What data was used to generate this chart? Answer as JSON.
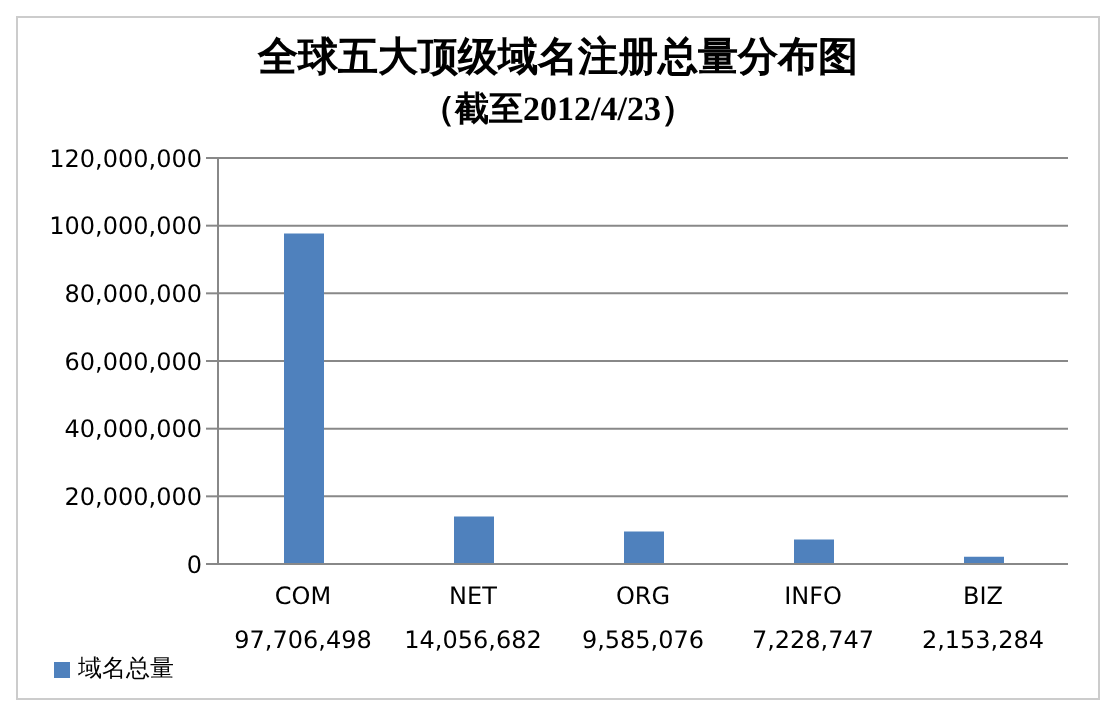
{
  "chart_data": {
    "type": "bar",
    "title": "全球五大顶级域名注册总量分布图",
    "subtitle": "（截至2012/4/23）",
    "categories": [
      "COM",
      "NET",
      "ORG",
      "INFO",
      "BIZ"
    ],
    "series": [
      {
        "name": "域名总量",
        "color": "#4f81bd",
        "values": [
          97706498,
          14056682,
          9585076,
          7228747,
          2153284
        ],
        "value_labels": [
          "97,706,498",
          "14,056,682",
          "9,585,076",
          "7,228,747",
          "2,153,284"
        ]
      }
    ],
    "ylim": [
      0,
      120000000
    ],
    "yticks": [
      0,
      {
        "value": 20000000,
        "label": "20,000,000"
      },
      {
        "value": 40000000,
        "label": "40,000,000"
      },
      {
        "value": 60000000,
        "label": "60,000,000"
      },
      {
        "value": 80000000,
        "label": "80,000,000"
      },
      {
        "value": 100000000,
        "label": "100,000,000"
      },
      {
        "value": 120000000,
        "label": "120,000,000"
      }
    ],
    "grid": "y",
    "legend": "bottom left"
  }
}
